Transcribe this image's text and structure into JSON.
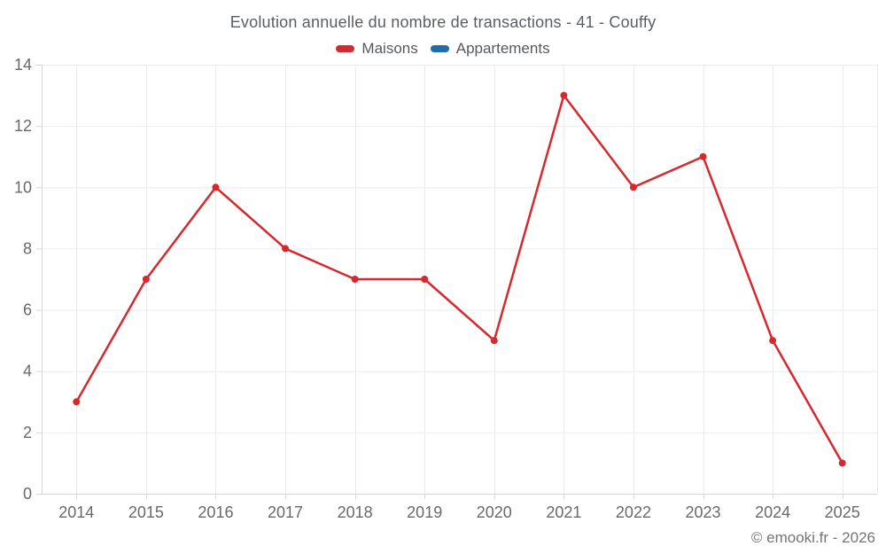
{
  "title": "Evolution annuelle du nombre de transactions - 41 - Couffy",
  "legend": {
    "items": [
      {
        "label": "Maisons",
        "color": "#d7282d"
      },
      {
        "label": "Appartements",
        "color": "#1e6fa9"
      }
    ]
  },
  "footer": {
    "copyright": "© emooki.fr - 2026"
  },
  "colors": {
    "background": "#ffffff",
    "grid": "#ebebeb",
    "axis": "#d6d6d6",
    "tick_label": "#66696d",
    "title_text": "#5a5e62",
    "maisons_red": "#d7282d",
    "appartements_blue": "#1e6fa9"
  },
  "chart_data": {
    "type": "line",
    "title": "Evolution annuelle du nombre de transactions - 41 - Couffy",
    "categories": [
      "2014",
      "2015",
      "2016",
      "2017",
      "2018",
      "2019",
      "2020",
      "2021",
      "2022",
      "2023",
      "2024",
      "2025"
    ],
    "series": [
      {
        "name": "Maisons",
        "color": "#d7282d",
        "values": [
          3,
          7,
          10,
          8,
          7,
          7,
          5,
          13,
          10,
          11,
          5,
          1
        ]
      },
      {
        "name": "Appartements",
        "color": "#1e6fa9",
        "values": []
      }
    ],
    "xlabel": "",
    "ylabel": "",
    "ylim": [
      0,
      14
    ],
    "ytick_step": 2,
    "grid": true,
    "legend_position": "top",
    "marker": "circle"
  }
}
